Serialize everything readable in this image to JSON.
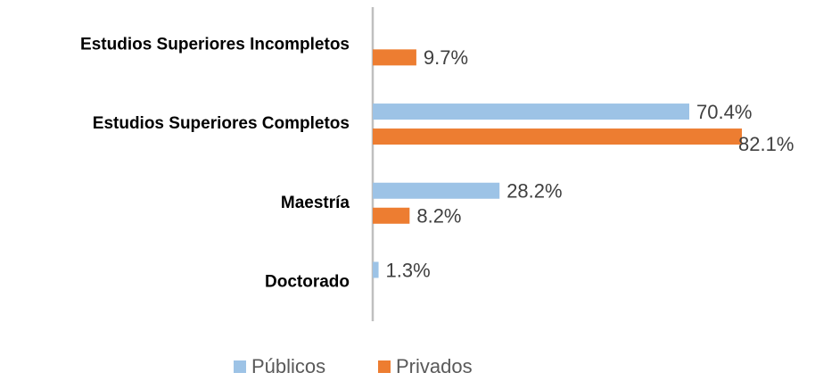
{
  "chart_data": {
    "type": "bar",
    "orientation": "horizontal",
    "categories": [
      "Estudios Superiores Incompletos",
      "Estudios Superiores Completos",
      "Maestría",
      "Doctorado"
    ],
    "series": [
      {
        "name": "Públicos",
        "color": "#9dc3e6",
        "values": [
          null,
          70.4,
          28.2,
          1.3
        ],
        "value_labels": [
          null,
          "70.4%",
          "28.2%",
          "1.3%"
        ]
      },
      {
        "name": "Privados",
        "color": "#ed7d31",
        "values": [
          9.7,
          82.1,
          8.2,
          null
        ],
        "value_labels": [
          "9.7%",
          "82.1%",
          "8.2%",
          null
        ]
      }
    ],
    "legend": "bottom"
  }
}
